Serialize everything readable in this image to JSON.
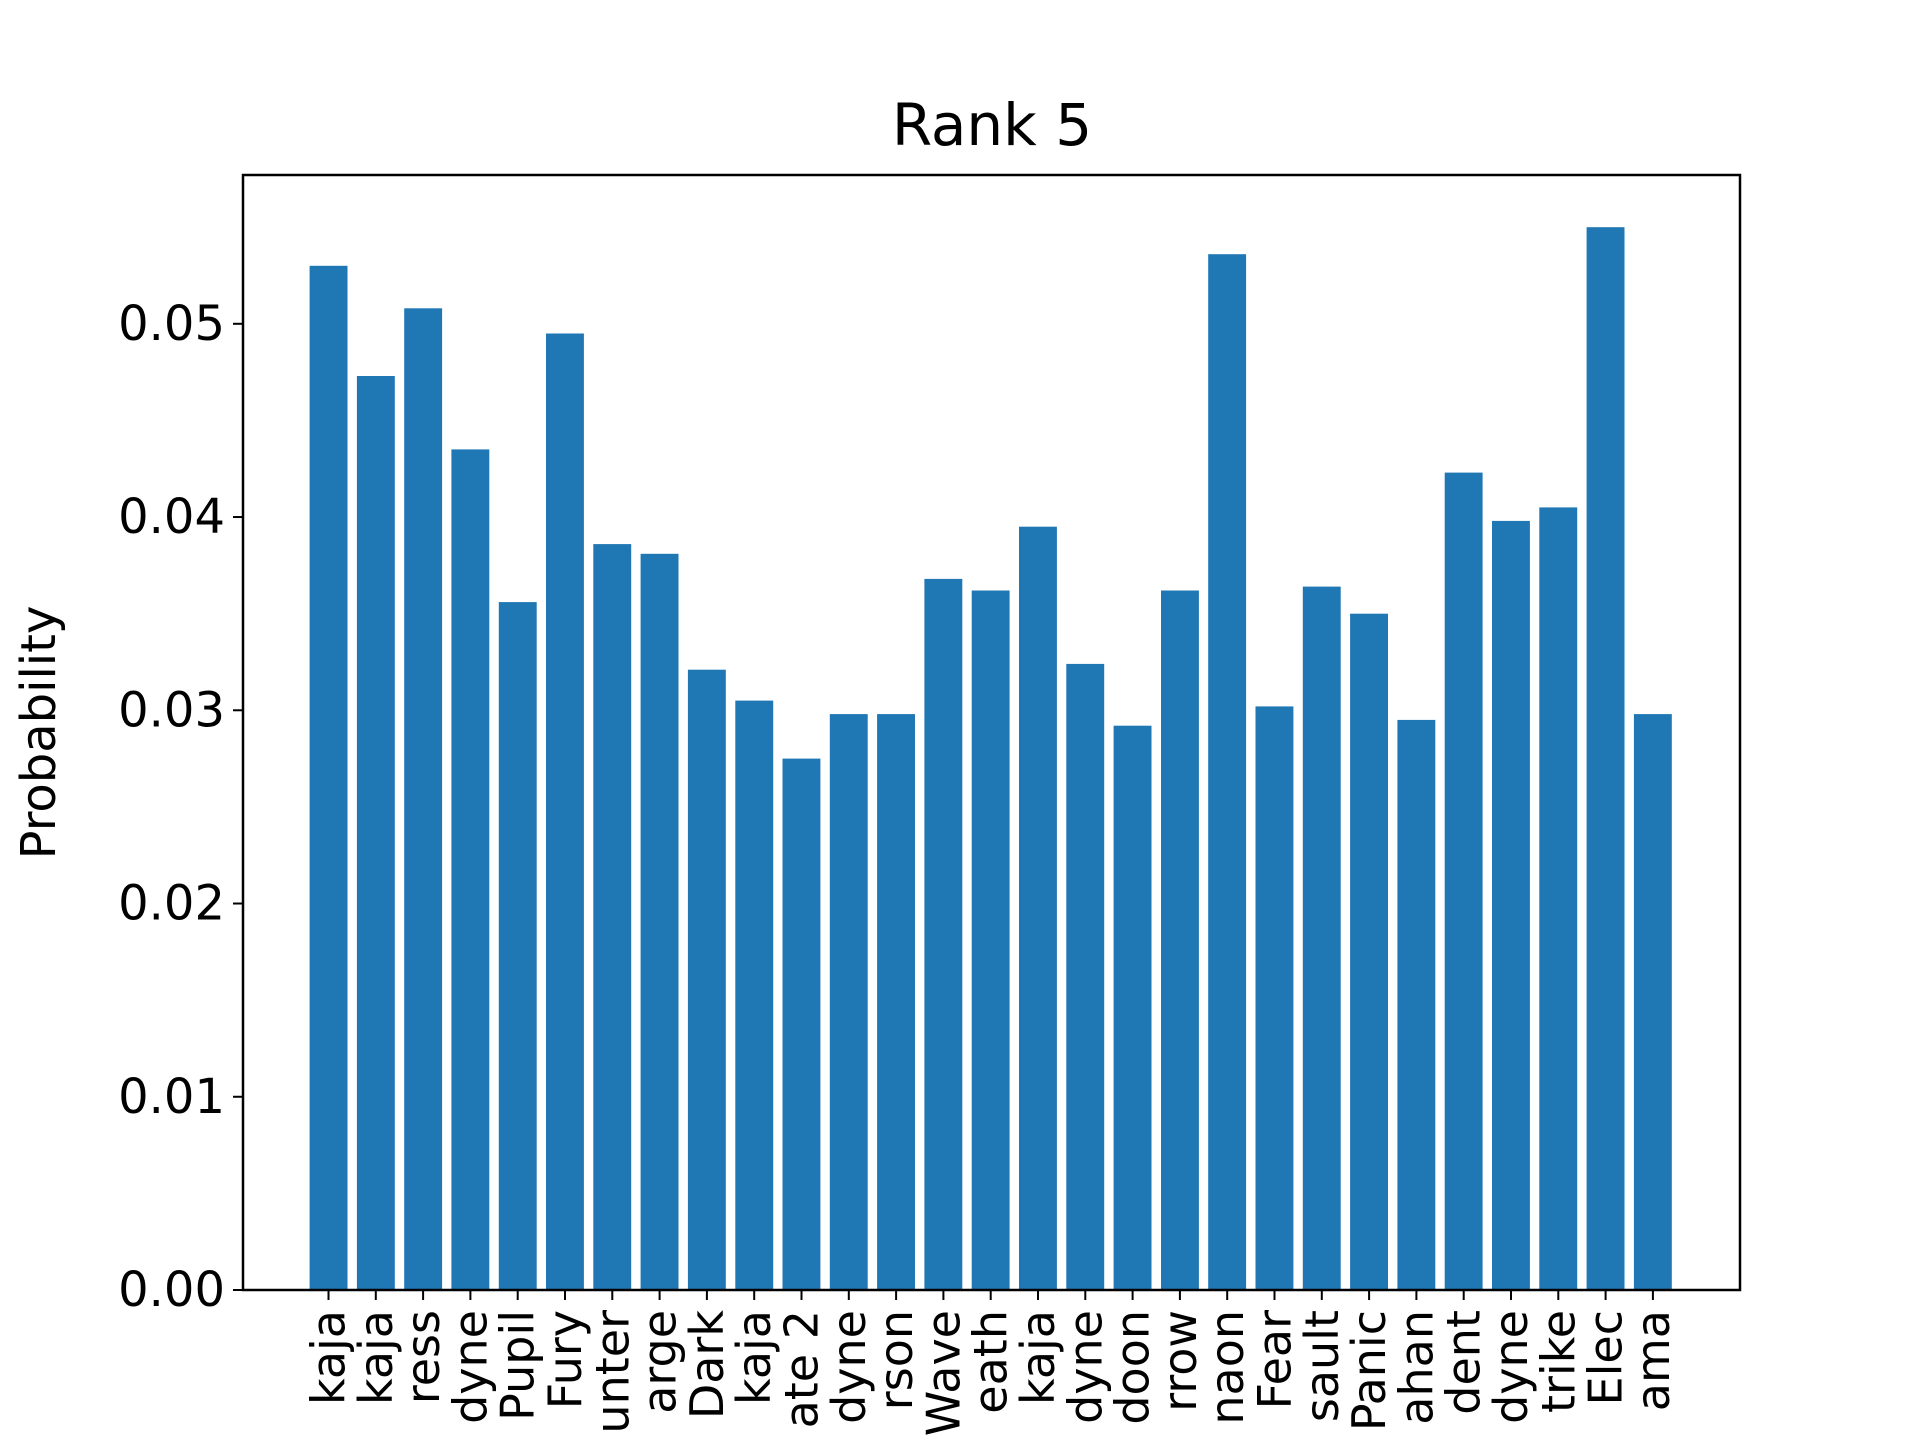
{
  "chart_data": {
    "type": "bar",
    "title": "Rank 5",
    "xlabel": "",
    "ylabel": "Probability",
    "ylim": [
      0,
      0.0577
    ],
    "yticks": [
      "0.00",
      "0.01",
      "0.02",
      "0.03",
      "0.04",
      "0.05"
    ],
    "grid": false,
    "categories": [
      "kaja",
      "kaja",
      "ress",
      "dyne",
      "Pupil",
      "Fury",
      "unter",
      "arge",
      "Dark",
      "kaja",
      "ate 2",
      "dyne",
      "rson",
      "Wave",
      "eath",
      "kaja",
      "dyne",
      "doon",
      "rrow",
      "naon",
      "Fear",
      "sault",
      "Panic",
      "ahan",
      "dent",
      "dyne",
      "trike",
      "Elec",
      "ama"
    ],
    "values": [
      0.053,
      0.0473,
      0.0508,
      0.0435,
      0.0356,
      0.0495,
      0.0386,
      0.0381,
      0.0321,
      0.0305,
      0.0275,
      0.0298,
      0.0298,
      0.0368,
      0.0362,
      0.0395,
      0.0324,
      0.0292,
      0.0362,
      0.0536,
      0.0302,
      0.0364,
      0.035,
      0.0295,
      0.0423,
      0.0398,
      0.0405,
      0.055,
      0.0298
    ],
    "colors": {
      "bar": "#1f77b4",
      "axes": "#000000"
    }
  }
}
